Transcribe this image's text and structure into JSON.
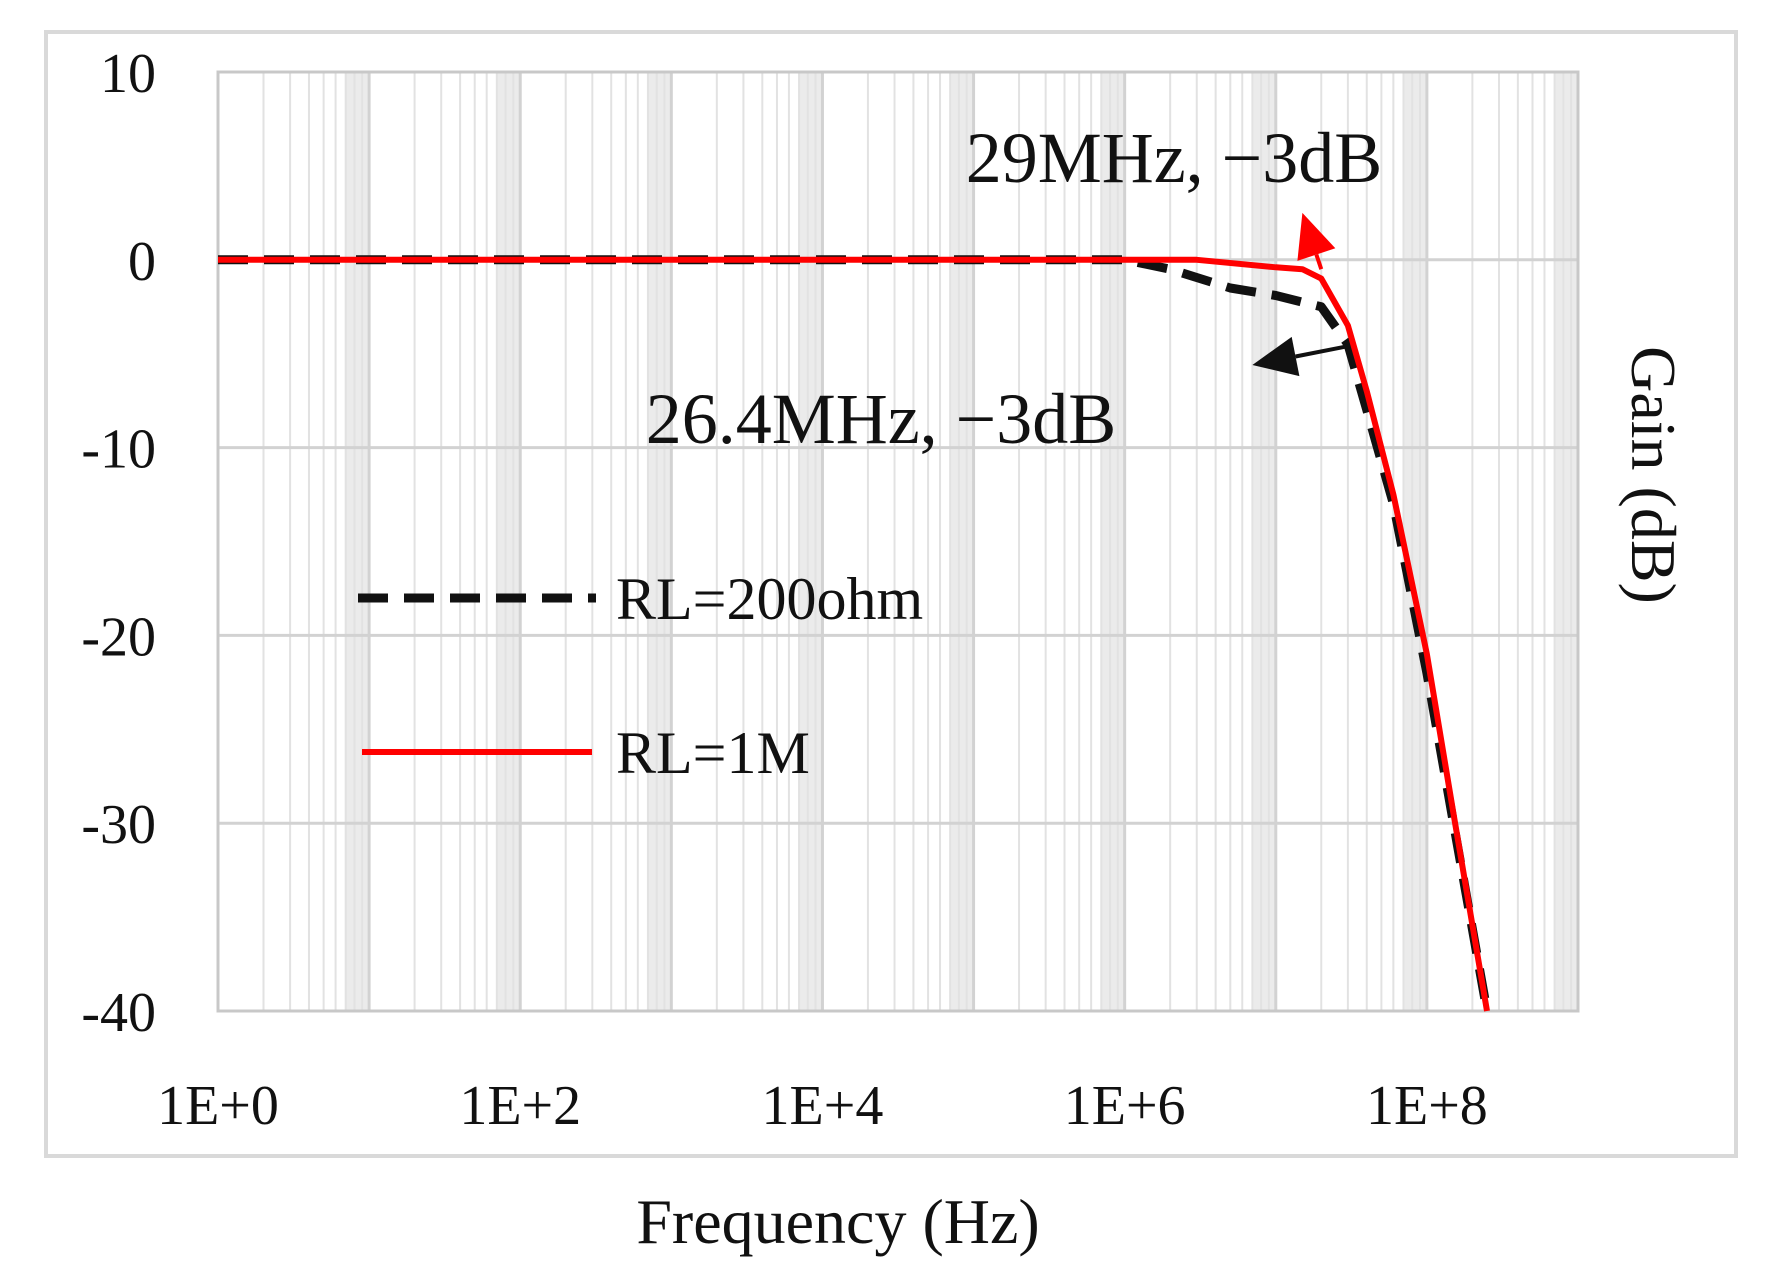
{
  "chart_data": {
    "type": "line",
    "xlabel": "Frequency (Hz)",
    "ylabel": "Gain (dB)",
    "x_scale": "log",
    "xlim": [
      1,
      1000000000
    ],
    "ylim": [
      -40,
      10
    ],
    "x_ticks": [
      {
        "value": 1,
        "label": "1E+0"
      },
      {
        "value": 100,
        "label": "1E+2"
      },
      {
        "value": 10000,
        "label": "1E+4"
      },
      {
        "value": 1000000,
        "label": "1E+6"
      },
      {
        "value": 100000000,
        "label": "1E+8"
      }
    ],
    "y_ticks": [
      {
        "value": 10,
        "label": "10"
      },
      {
        "value": 0,
        "label": "0"
      },
      {
        "value": -10,
        "label": "-10"
      },
      {
        "value": -20,
        "label": "-20"
      },
      {
        "value": -30,
        "label": "-30"
      },
      {
        "value": -40,
        "label": "-40"
      }
    ],
    "grid": true,
    "legend_position": "center-left",
    "series": [
      {
        "name": "RL=200ohm",
        "color": "#111111",
        "style": "dashed",
        "x": [
          1,
          100,
          10000,
          1000000,
          2000000,
          5000000,
          10000000,
          20000000,
          30000000,
          40000000,
          60000000,
          100000000,
          150000000,
          250000000
        ],
        "y": [
          0,
          0,
          0,
          0,
          -0.5,
          -1.5,
          -1.9,
          -2.5,
          -4.5,
          -8,
          -13,
          -22,
          -30,
          -40
        ]
      },
      {
        "name": "RL=1M",
        "color": "#ff0000",
        "style": "solid",
        "x": [
          1,
          100,
          10000,
          1000000,
          3000000,
          10000000,
          15000000,
          20000000,
          30000000,
          40000000,
          60000000,
          100000000,
          150000000,
          250000000
        ],
        "y": [
          0,
          0,
          0,
          0,
          0,
          -0.4,
          -0.5,
          -1,
          -3.5,
          -7,
          -12.5,
          -21,
          -29.5,
          -40
        ]
      }
    ],
    "annotations": [
      {
        "text": "29MHz, −3dB",
        "color": "#ff0000",
        "arrow_from": [
          20000000,
          -0.5
        ],
        "arrow_to": [
          15000000,
          2.5
        ]
      },
      {
        "text": "26.4MHz, −3dB",
        "color": "#111111",
        "arrow_from": [
          30000000,
          -4.6
        ],
        "arrow_to": [
          7000000,
          -5.6
        ]
      }
    ]
  }
}
